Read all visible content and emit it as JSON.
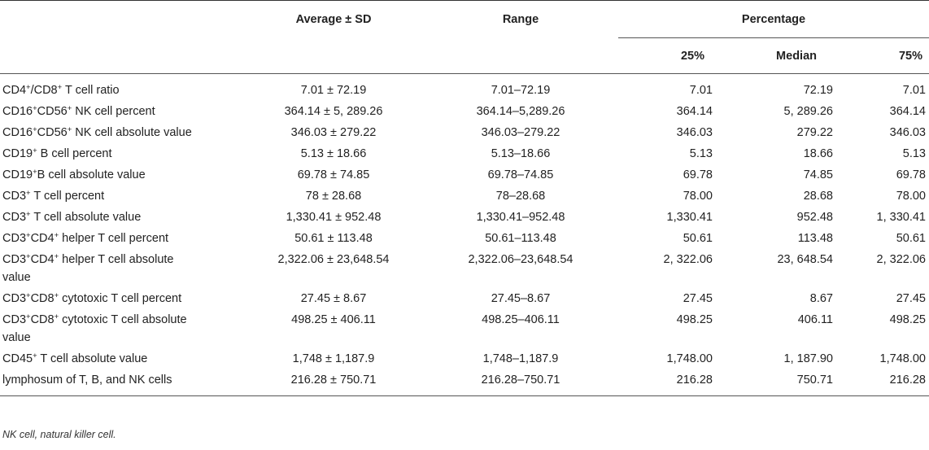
{
  "header": {
    "col_label": "",
    "col_avg": "Average ± SD",
    "col_range": "Range",
    "col_percentage": "Percentage",
    "col_q25": "25%",
    "col_median": "Median",
    "col_q75": "75%"
  },
  "rows": [
    {
      "label_parts": [
        "CD4",
        "+",
        "/CD8",
        "+",
        " T cell ratio"
      ],
      "avg": "7.01 ± 72.19",
      "range": "7.01–72.19",
      "q25": "7.01",
      "median": "72.19",
      "q75": "7.01"
    },
    {
      "label_parts": [
        "CD16",
        "+",
        "CD56",
        "+",
        " NK cell percent"
      ],
      "avg": "364.14 ± 5, 289.26",
      "range": "364.14–5,289.26",
      "q25": "364.14",
      "median": "5, 289.26",
      "q75": "364.14"
    },
    {
      "label_parts": [
        "CD16",
        "+",
        "CD56",
        "+",
        " NK cell absolute value"
      ],
      "avg": "346.03 ± 279.22",
      "range": "346.03–279.22",
      "q25": "346.03",
      "median": "279.22",
      "q75": "346.03"
    },
    {
      "label_parts": [
        "CD19",
        "+",
        " B cell percent"
      ],
      "avg": "5.13 ± 18.66",
      "range": "5.13–18.66",
      "q25": "5.13",
      "median": "18.66",
      "q75": "5.13"
    },
    {
      "label_parts": [
        "CD19",
        "+",
        "B cell absolute value"
      ],
      "avg": "69.78 ± 74.85",
      "range": "69.78–74.85",
      "q25": "69.78",
      "median": "74.85",
      "q75": "69.78"
    },
    {
      "label_parts": [
        "CD3",
        "+",
        " T cell percent"
      ],
      "avg": "78 ± 28.68",
      "range": "78–28.68",
      "q25": "78.00",
      "median": "28.68",
      "q75": "78.00"
    },
    {
      "label_parts": [
        "CD3",
        "+",
        " T cell absolute value"
      ],
      "avg": "1,330.41 ± 952.48",
      "range": "1,330.41–952.48",
      "q25": "1,330.41",
      "median": "952.48",
      "q75": "1, 330.41"
    },
    {
      "label_parts": [
        "CD3",
        "+",
        "CD4",
        "+",
        " helper T cell percent"
      ],
      "avg": "50.61 ± 113.48",
      "range": "50.61–113.48",
      "q25": "50.61",
      "median": "113.48",
      "q75": "50.61"
    },
    {
      "label_parts": [
        "CD3",
        "+",
        "CD4",
        "+",
        " helper T cell absolute value"
      ],
      "avg": "2,322.06 ± 23,648.54",
      "range": "2,322.06–23,648.54",
      "q25": "2, 322.06",
      "median": "23, 648.54",
      "q75": "2, 322.06"
    },
    {
      "label_parts": [
        "CD3",
        "+",
        "CD8",
        "+",
        " cytotoxic T cell percent"
      ],
      "avg": "27.45 ± 8.67",
      "range": "27.45–8.67",
      "q25": "27.45",
      "median": "8.67",
      "q75": "27.45"
    },
    {
      "label_parts": [
        "CD3",
        "+",
        "CD8",
        "+",
        " cytotoxic T cell absolute value"
      ],
      "avg": "498.25 ± 406.11",
      "range": "498.25–406.11",
      "q25": "498.25",
      "median": "406.11",
      "q75": "498.25"
    },
    {
      "label_parts": [
        "CD45",
        "+",
        " T cell absolute value"
      ],
      "avg": "1,748 ± 1,187.9",
      "range": "1,748–1,187.9",
      "q25": "1,748.00",
      "median": "1, 187.90",
      "q75": "1,748.00"
    },
    {
      "label_parts": [
        "lymphosum of T, B, and NK cells"
      ],
      "avg": "216.28 ± 750.71",
      "range": "216.28–750.71",
      "q25": "216.28",
      "median": "750.71",
      "q75": "216.28"
    }
  ],
  "footnote": "NK cell, natural killer cell."
}
